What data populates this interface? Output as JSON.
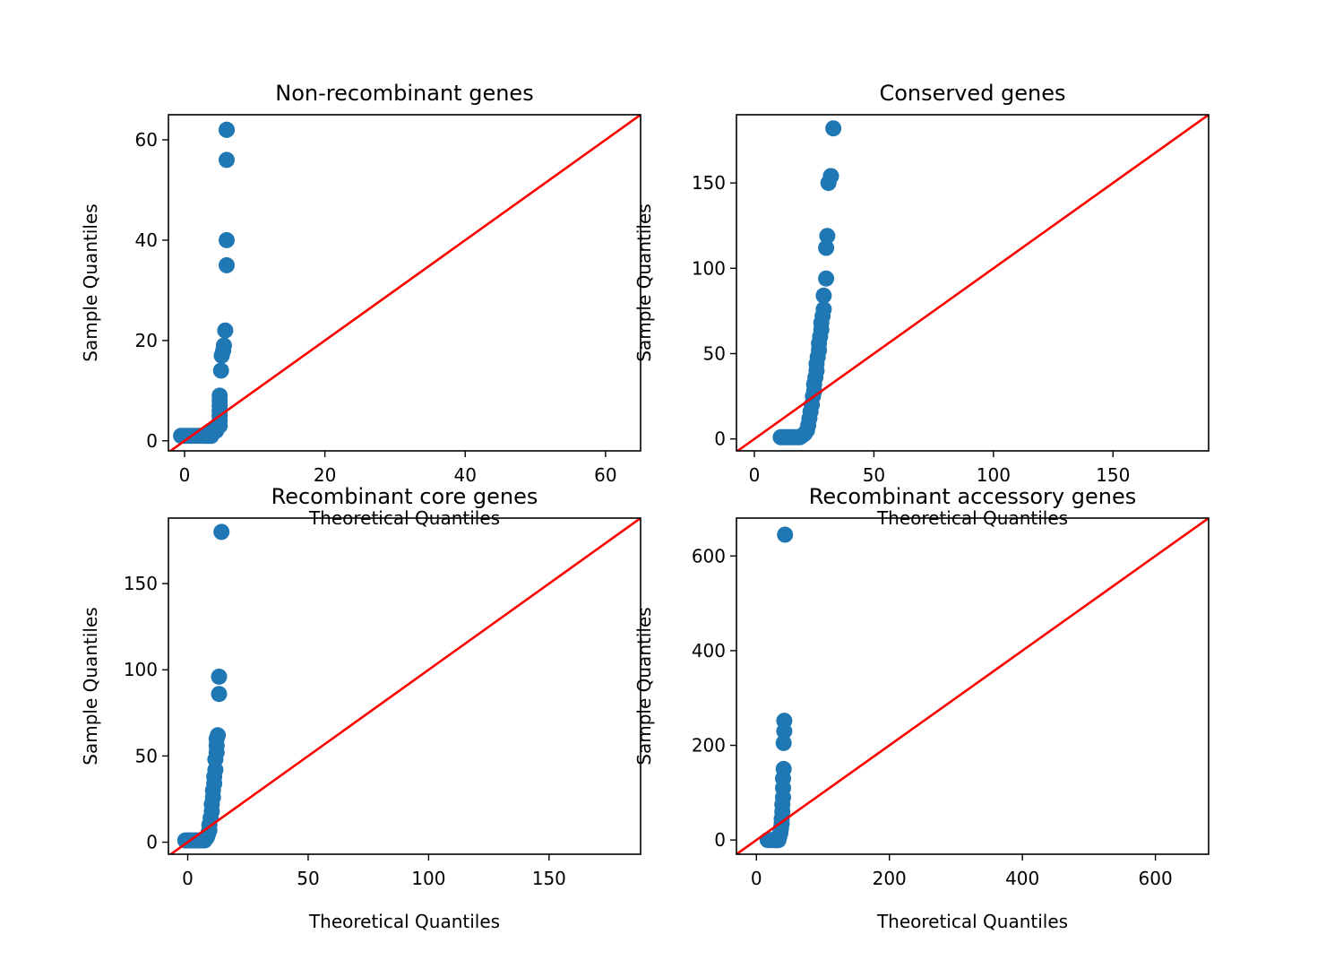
{
  "colors": {
    "points": "#1f77b4",
    "reference_line": "#ff0000",
    "frame": "#000000"
  },
  "chart_data": [
    {
      "type": "scatter",
      "title": "Non-recombinant genes",
      "xlabel": "Theoretical Quantiles",
      "ylabel": "Sample Quantiles",
      "xlim": [
        -2.3,
        65
      ],
      "ylim": [
        -2,
        65
      ],
      "xticks": [
        0,
        20,
        40,
        60
      ],
      "yticks": [
        0,
        20,
        40,
        60
      ],
      "reference_line": "y = x",
      "points": {
        "x": [
          -0.5,
          0,
          0.5,
          1,
          1.5,
          2,
          2.5,
          3,
          3.2,
          3.5,
          3.8,
          4,
          4.2,
          4.5,
          4.7,
          5,
          5,
          5,
          5,
          5,
          5,
          5,
          5,
          5.2,
          5.3,
          5.5,
          5.6,
          5.8,
          6,
          6,
          6,
          6,
          6
        ],
        "y": [
          1,
          1,
          1,
          1,
          1,
          1,
          1,
          1,
          1,
          1,
          1,
          2,
          2,
          2,
          3,
          3,
          4,
          5,
          5,
          6,
          7,
          8,
          9,
          14,
          17,
          18,
          19,
          22,
          35,
          40,
          56,
          62,
          62
        ]
      }
    },
    {
      "type": "scatter",
      "title": "Conserved genes",
      "xlabel": "Theoretical Quantiles",
      "ylabel": "Sample Quantiles",
      "xlim": [
        -7.5,
        190
      ],
      "ylim": [
        -7,
        190
      ],
      "xticks": [
        0,
        50,
        100,
        150
      ],
      "yticks": [
        0,
        50,
        100,
        150
      ],
      "reference_line": "y = x",
      "points": {
        "x": [
          11,
          12,
          13,
          14,
          15,
          16,
          17,
          18,
          19,
          20,
          21,
          22,
          22.5,
          23,
          23.5,
          24,
          24.5,
          25,
          25,
          25.5,
          26,
          26,
          26.5,
          27,
          27,
          27.5,
          28,
          28,
          28.5,
          29,
          29,
          30,
          30,
          30.5,
          31,
          32,
          32,
          33
        ],
        "y": [
          1,
          1,
          1,
          1,
          1,
          1,
          1,
          1,
          1,
          2,
          3,
          5,
          8,
          12,
          16,
          20,
          25,
          28,
          32,
          36,
          40,
          44,
          48,
          52,
          56,
          60,
          64,
          68,
          72,
          76,
          84,
          94,
          112,
          119,
          150,
          154,
          154,
          182
        ]
      }
    },
    {
      "type": "scatter",
      "title": "Recombinant core genes",
      "xlabel": "Theoretical Quantiles",
      "ylabel": "Sample Quantiles",
      "xlim": [
        -8,
        188
      ],
      "ylim": [
        -7,
        188
      ],
      "xticks": [
        0,
        50,
        100,
        150
      ],
      "yticks": [
        0,
        50,
        100,
        150
      ],
      "reference_line": "y = x",
      "points": {
        "x": [
          -1,
          0,
          1,
          2,
          3,
          4,
          5,
          6,
          7,
          7.5,
          8,
          8.5,
          9,
          9,
          9.5,
          10,
          10,
          10.5,
          10.5,
          11,
          11,
          11.5,
          11.5,
          12,
          12,
          12,
          12.5,
          13,
          13,
          14
        ],
        "y": [
          1,
          1,
          1,
          1,
          1,
          1,
          1,
          1,
          1,
          2,
          3,
          5,
          7,
          10,
          14,
          18,
          22,
          26,
          30,
          34,
          38,
          42,
          48,
          52,
          56,
          60,
          62,
          86,
          96,
          180
        ]
      }
    },
    {
      "type": "scatter",
      "title": "Recombinant accessory genes",
      "xlabel": "Theoretical Quantiles",
      "ylabel": "Sample Quantiles",
      "xlim": [
        -30,
        680
      ],
      "ylim": [
        -30,
        680
      ],
      "xticks": [
        0,
        200,
        400,
        600
      ],
      "yticks": [
        0,
        200,
        400,
        600
      ],
      "reference_line": "y = x",
      "points": {
        "x": [
          17,
          20,
          23,
          26,
          28,
          30,
          32,
          33,
          34,
          35,
          36,
          37,
          38,
          38,
          39,
          39,
          40,
          40,
          40,
          41,
          41,
          42,
          42,
          43
        ],
        "y": [
          0,
          0,
          0,
          0,
          0,
          0,
          0,
          0,
          5,
          10,
          15,
          25,
          35,
          45,
          60,
          75,
          90,
          110,
          130,
          150,
          205,
          230,
          252,
          645
        ]
      }
    }
  ]
}
